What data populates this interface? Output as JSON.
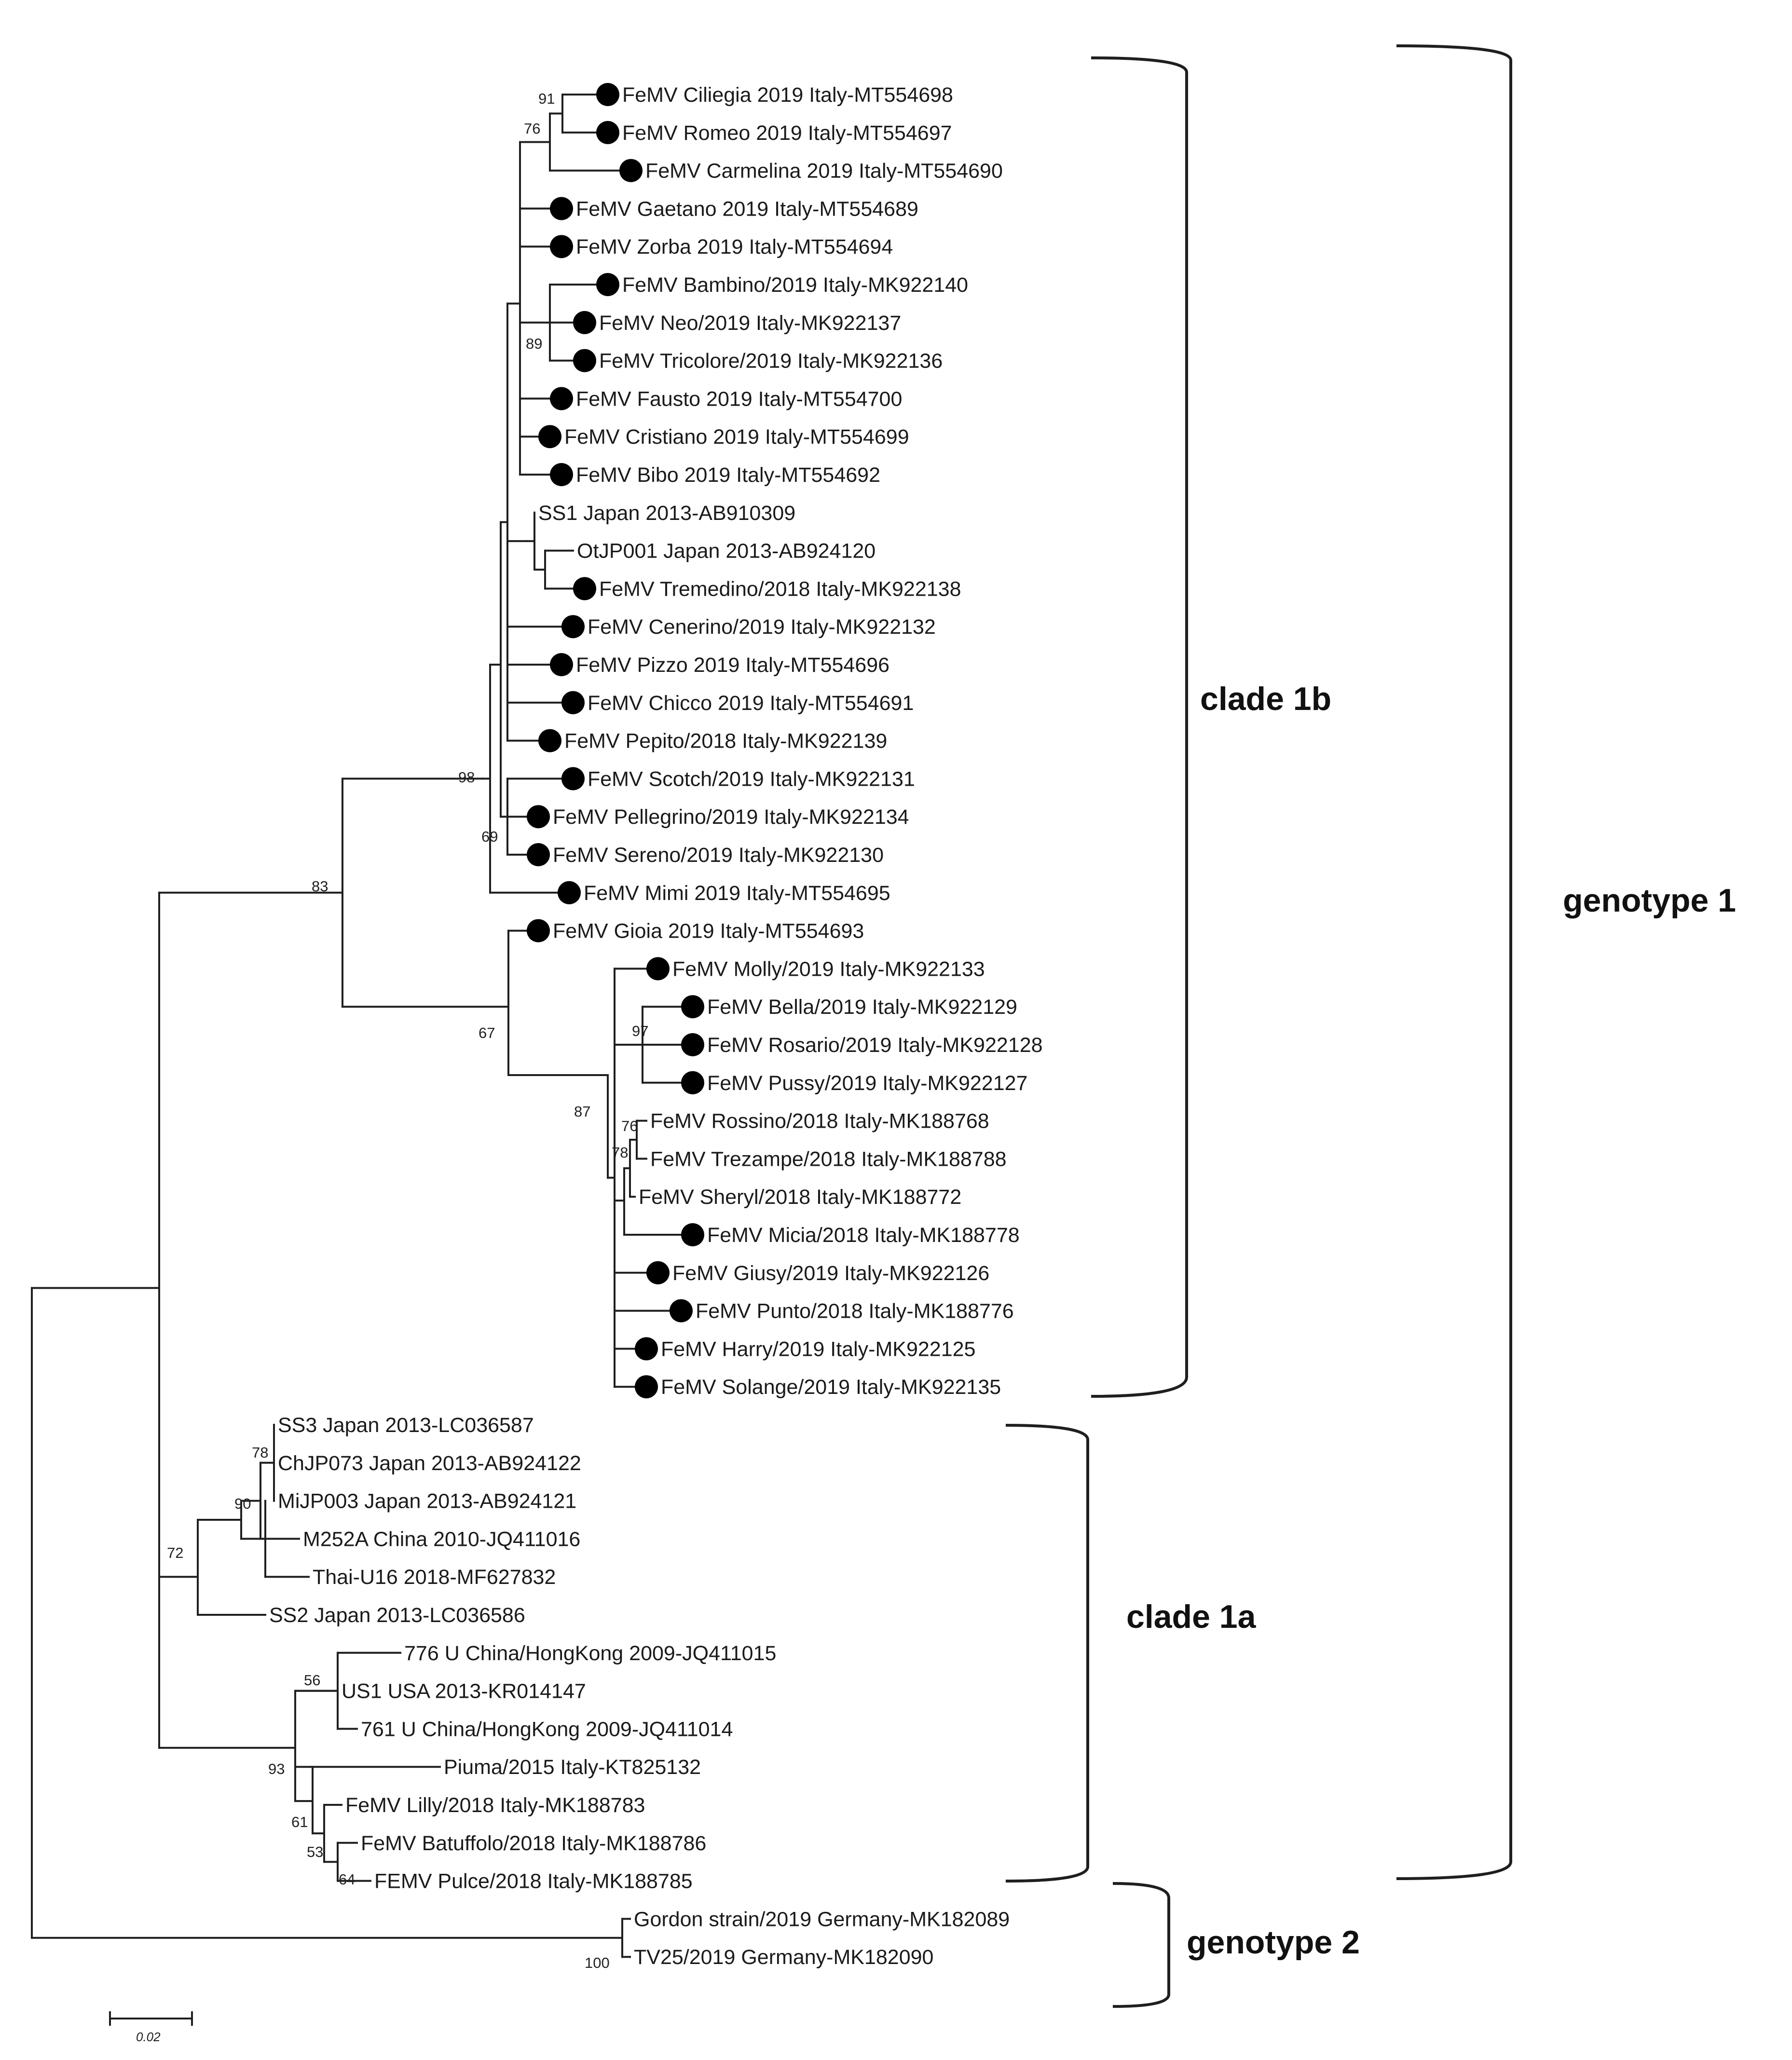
{
  "figure": {
    "type": "phylogenetic-tree",
    "groups": {
      "clade_1b": "clade 1b",
      "clade_1a": "clade 1a",
      "genotype_1": "genotype 1",
      "genotype_2": "genotype 2"
    },
    "scale_bar": {
      "label": "0.02",
      "value": 0.02
    },
    "leaves": [
      {
        "label": "FeMV Ciliegia 2019 Italy-MT554698",
        "marked": true
      },
      {
        "label": "FeMV Romeo 2019 Italy-MT554697",
        "marked": true
      },
      {
        "label": "FeMV Carmelina 2019 Italy-MT554690",
        "marked": true
      },
      {
        "label": "FeMV Gaetano 2019 Italy-MT554689",
        "marked": true
      },
      {
        "label": "FeMV Zorba 2019 Italy-MT554694",
        "marked": true
      },
      {
        "label": "FeMV Bambino/2019 Italy-MK922140",
        "marked": true
      },
      {
        "label": "FeMV Neo/2019 Italy-MK922137",
        "marked": true
      },
      {
        "label": "FeMV Tricolore/2019 Italy-MK922136",
        "marked": true
      },
      {
        "label": "FeMV Fausto 2019 Italy-MT554700",
        "marked": true
      },
      {
        "label": "FeMV Cristiano 2019 Italy-MT554699",
        "marked": true
      },
      {
        "label": "FeMV Bibo 2019 Italy-MT554692",
        "marked": true
      },
      {
        "label": "SS1 Japan 2013-AB910309",
        "marked": false
      },
      {
        "label": "OtJP001 Japan 2013-AB924120",
        "marked": false
      },
      {
        "label": "FeMV Tremedino/2018 Italy-MK922138",
        "marked": true
      },
      {
        "label": "FeMV Cenerino/2019 Italy-MK922132",
        "marked": true
      },
      {
        "label": "FeMV Pizzo 2019 Italy-MT554696",
        "marked": true
      },
      {
        "label": "FeMV Chicco 2019 Italy-MT554691",
        "marked": true
      },
      {
        "label": "FeMV Pepito/2018 Italy-MK922139",
        "marked": true
      },
      {
        "label": "FeMV Scotch/2019 Italy-MK922131",
        "marked": true
      },
      {
        "label": "FeMV Pellegrino/2019 Italy-MK922134",
        "marked": true
      },
      {
        "label": "FeMV Sereno/2019 Italy-MK922130",
        "marked": true
      },
      {
        "label": "FeMV Mimi 2019 Italy-MT554695",
        "marked": true
      },
      {
        "label": "FeMV Gioia 2019 Italy-MT554693",
        "marked": true
      },
      {
        "label": "FeMV Molly/2019 Italy-MK922133",
        "marked": true
      },
      {
        "label": "FeMV Bella/2019 Italy-MK922129",
        "marked": true
      },
      {
        "label": "FeMV Rosario/2019 Italy-MK922128",
        "marked": true
      },
      {
        "label": "FeMV Pussy/2019 Italy-MK922127",
        "marked": true
      },
      {
        "label": "FeMV Rossino/2018 Italy-MK188768",
        "marked": false
      },
      {
        "label": "FeMV Trezampe/2018 Italy-MK188788",
        "marked": false
      },
      {
        "label": "FeMV Sheryl/2018 Italy-MK188772",
        "marked": false
      },
      {
        "label": "FeMV Micia/2018 Italy-MK188778",
        "marked": true
      },
      {
        "label": "FeMV Giusy/2019 Italy-MK922126",
        "marked": true
      },
      {
        "label": "FeMV Punto/2018 Italy-MK188776",
        "marked": true
      },
      {
        "label": "FeMV Harry/2019 Italy-MK922125",
        "marked": true
      },
      {
        "label": "FeMV Solange/2019 Italy-MK922135",
        "marked": true
      },
      {
        "label": "SS3 Japan 2013-LC036587",
        "marked": false
      },
      {
        "label": "ChJP073 Japan 2013-AB924122",
        "marked": false
      },
      {
        "label": "MiJP003 Japan 2013-AB924121",
        "marked": false
      },
      {
        "label": "M252A China 2010-JQ411016",
        "marked": false
      },
      {
        "label": "Thai-U16 2018-MF627832",
        "marked": false
      },
      {
        "label": "SS2 Japan 2013-LC036586",
        "marked": false
      },
      {
        "label": "776 U China/HongKong 2009-JQ411015",
        "marked": false
      },
      {
        "label": "US1 USA 2013-KR014147",
        "marked": false
      },
      {
        "label": "761 U China/HongKong 2009-JQ411014",
        "marked": false
      },
      {
        "label": "Piuma/2015 Italy-KT825132",
        "marked": false
      },
      {
        "label": "FeMV Lilly/2018 Italy-MK188783",
        "marked": false
      },
      {
        "label": "FeMV Batuffolo/2018 Italy-MK188786",
        "marked": false
      },
      {
        "label": "FEMV Pulce/2018 Italy-MK188785",
        "marked": false
      },
      {
        "label": "Gordon strain/2019 Germany-MK182089",
        "marked": false
      },
      {
        "label": "TV25/2019 Germany-MK182090",
        "marked": false
      }
    ],
    "bootstrap_values": [
      {
        "id": "b91",
        "value": "91"
      },
      {
        "id": "b76a",
        "value": "76"
      },
      {
        "id": "b89",
        "value": "89"
      },
      {
        "id": "b98",
        "value": "98"
      },
      {
        "id": "b69",
        "value": "69"
      },
      {
        "id": "b83",
        "value": "83"
      },
      {
        "id": "b67",
        "value": "67"
      },
      {
        "id": "b97",
        "value": "97"
      },
      {
        "id": "b87",
        "value": "87"
      },
      {
        "id": "b76b",
        "value": "76"
      },
      {
        "id": "b78a",
        "value": "78"
      },
      {
        "id": "b78b",
        "value": "78"
      },
      {
        "id": "b90",
        "value": "90"
      },
      {
        "id": "b72",
        "value": "72"
      },
      {
        "id": "b56",
        "value": "56"
      },
      {
        "id": "b93",
        "value": "93"
      },
      {
        "id": "b61",
        "value": "61"
      },
      {
        "id": "b53",
        "value": "53"
      },
      {
        "id": "b64",
        "value": "64"
      },
      {
        "id": "b100",
        "value": "100"
      }
    ]
  }
}
